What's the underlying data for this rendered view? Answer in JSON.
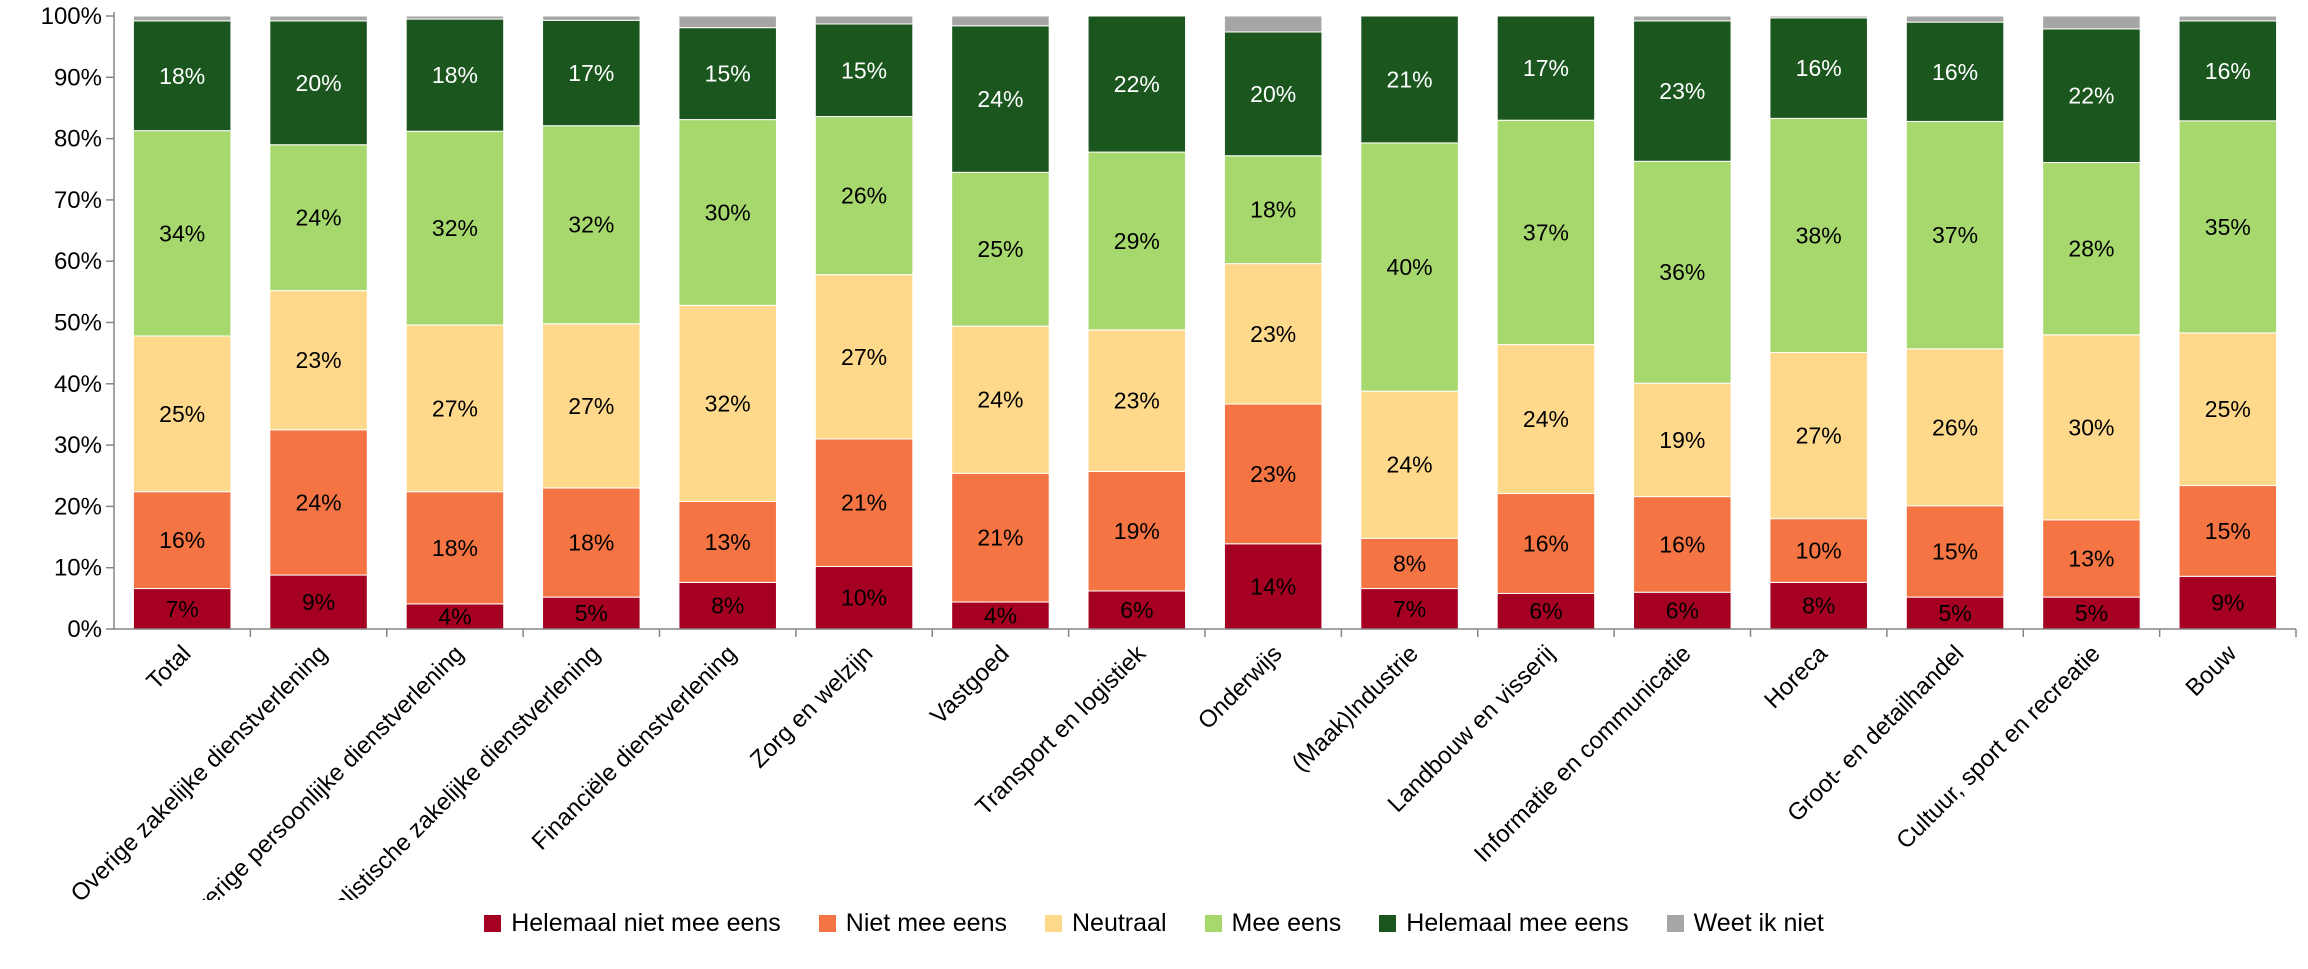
{
  "chart_data": {
    "type": "bar",
    "stacked": true,
    "percent_stacked": true,
    "ylim": [
      0,
      100
    ],
    "yticks": [
      "0%",
      "10%",
      "20%",
      "30%",
      "40%",
      "50%",
      "60%",
      "70%",
      "80%",
      "90%",
      "100%"
    ],
    "grid": false,
    "legend_position": "bottom",
    "categories": [
      "Total",
      "Overige zakelijke dienstverlening",
      "Overige persoonlijke dienstverlening",
      "Specialistische zakelijke dienstverlening",
      "Financiële dienstverlening",
      "Zorg en welzijn",
      "Vastgoed",
      "Transport en logistiek",
      "Onderwijs",
      "(Maak)Industrie",
      "Landbouw en visserij",
      "Informatie en communicatie",
      "Horeca",
      "Groot- en detailhandel",
      "Cultuur, sport en recreatie",
      "Bouw"
    ],
    "series": [
      {
        "name": "Helemaal niet mee eens",
        "color": "#a50021",
        "values": [
          6.6,
          8.8,
          4.1,
          5.2,
          7.6,
          10.2,
          4.4,
          6.2,
          13.9,
          6.6,
          5.8,
          6.0,
          7.6,
          5.2,
          5.2,
          8.6
        ],
        "labels": [
          "7%",
          "9%",
          "4%",
          "5%",
          "8%",
          "10%",
          "4%",
          "6%",
          "14%",
          "7%",
          "6%",
          "6%",
          "8%",
          "5%",
          "5%",
          "9%"
        ]
      },
      {
        "name": "Niet mee eens",
        "color": "#f47443",
        "values": [
          15.8,
          23.7,
          18.3,
          17.8,
          13.2,
          20.8,
          21.0,
          19.5,
          22.8,
          8.2,
          16.3,
          15.6,
          10.4,
          14.9,
          12.6,
          14.8
        ],
        "labels": [
          "16%",
          "24%",
          "18%",
          "18%",
          "13%",
          "21%",
          "21%",
          "19%",
          "23%",
          "8%",
          "16%",
          "16%",
          "10%",
          "15%",
          "13%",
          "15%"
        ]
      },
      {
        "name": "Neutraal",
        "color": "#ffd98b",
        "values": [
          25.4,
          22.7,
          27.2,
          26.8,
          32.0,
          26.8,
          24.0,
          23.1,
          22.9,
          24.0,
          24.3,
          18.5,
          27.1,
          25.6,
          30.2,
          24.9
        ],
        "labels": [
          "25%",
          "23%",
          "27%",
          "27%",
          "32%",
          "27%",
          "24%",
          "23%",
          "23%",
          "24%",
          "24%",
          "19%",
          "27%",
          "26%",
          "30%",
          "25%"
        ]
      },
      {
        "name": "Mee eens",
        "color": "#a6d86e",
        "values": [
          33.5,
          23.8,
          31.6,
          32.3,
          30.3,
          25.8,
          25.1,
          29.0,
          17.6,
          40.5,
          36.6,
          36.2,
          38.2,
          37.1,
          28.1,
          34.6
        ],
        "labels": [
          "34%",
          "24%",
          "32%",
          "32%",
          "30%",
          "26%",
          "25%",
          "29%",
          "18%",
          "40%",
          "37%",
          "36%",
          "38%",
          "37%",
          "28%",
          "35%"
        ]
      },
      {
        "name": "Helemaal mee eens",
        "color": "#1b561e",
        "values": [
          17.9,
          20.2,
          18.3,
          17.2,
          15.0,
          15.1,
          23.9,
          22.2,
          20.2,
          20.7,
          17.0,
          22.9,
          16.4,
          16.2,
          21.8,
          16.3
        ],
        "labels": [
          "18%",
          "20%",
          "18%",
          "17%",
          "15%",
          "15%",
          "24%",
          "22%",
          "20%",
          "21%",
          "17%",
          "23%",
          "16%",
          "16%",
          "22%",
          "16%"
        ]
      },
      {
        "name": "Weet ik niet",
        "color": "#a6a6a6",
        "values": [
          0.8,
          0.8,
          0.5,
          0.7,
          1.9,
          1.3,
          1.6,
          0.0,
          2.6,
          0.0,
          0.0,
          0.8,
          0.3,
          1.0,
          2.1,
          0.8
        ],
        "labels": [
          "",
          "",
          "",
          "",
          "",
          "",
          "",
          "",
          "",
          "",
          "",
          "",
          "",
          "",
          "",
          ""
        ]
      }
    ]
  }
}
